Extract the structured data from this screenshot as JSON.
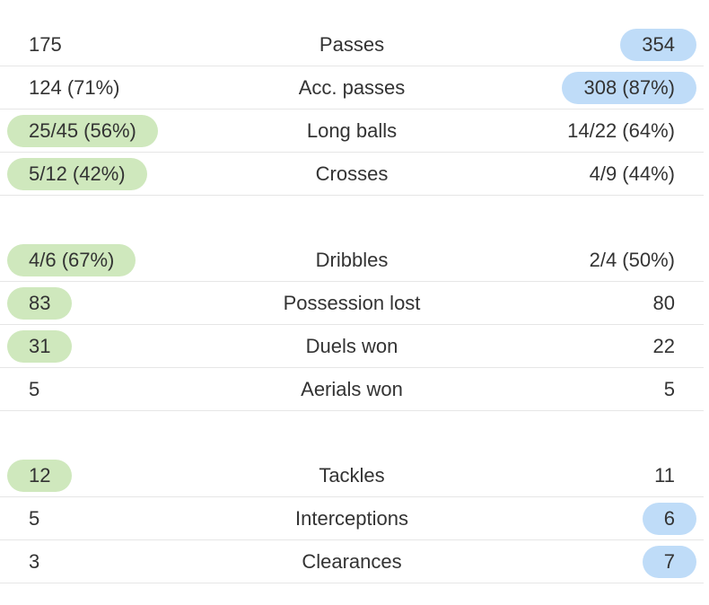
{
  "colors": {
    "home_highlight": "#cfe8bd",
    "away_highlight": "#bfdcf8",
    "divider": "#e6e6e6"
  },
  "groups": [
    {
      "rows": [
        {
          "label": "Passes",
          "home": "175",
          "away": "354",
          "highlight": "away"
        },
        {
          "label": "Acc. passes",
          "home": "124 (71%)",
          "away": "308 (87%)",
          "highlight": "away"
        },
        {
          "label": "Long balls",
          "home": "25/45 (56%)",
          "away": "14/22 (64%)",
          "highlight": "home"
        },
        {
          "label": "Crosses",
          "home": "5/12 (42%)",
          "away": "4/9 (44%)",
          "highlight": "home"
        }
      ]
    },
    {
      "rows": [
        {
          "label": "Dribbles",
          "home": "4/6 (67%)",
          "away": "2/4 (50%)",
          "highlight": "home"
        },
        {
          "label": "Possession lost",
          "home": "83",
          "away": "80",
          "highlight": "home"
        },
        {
          "label": "Duels won",
          "home": "31",
          "away": "22",
          "highlight": "home"
        },
        {
          "label": "Aerials won",
          "home": "5",
          "away": "5",
          "highlight": "none"
        }
      ]
    },
    {
      "rows": [
        {
          "label": "Tackles",
          "home": "12",
          "away": "11",
          "highlight": "home"
        },
        {
          "label": "Interceptions",
          "home": "5",
          "away": "6",
          "highlight": "away"
        },
        {
          "label": "Clearances",
          "home": "3",
          "away": "7",
          "highlight": "away"
        }
      ]
    }
  ]
}
